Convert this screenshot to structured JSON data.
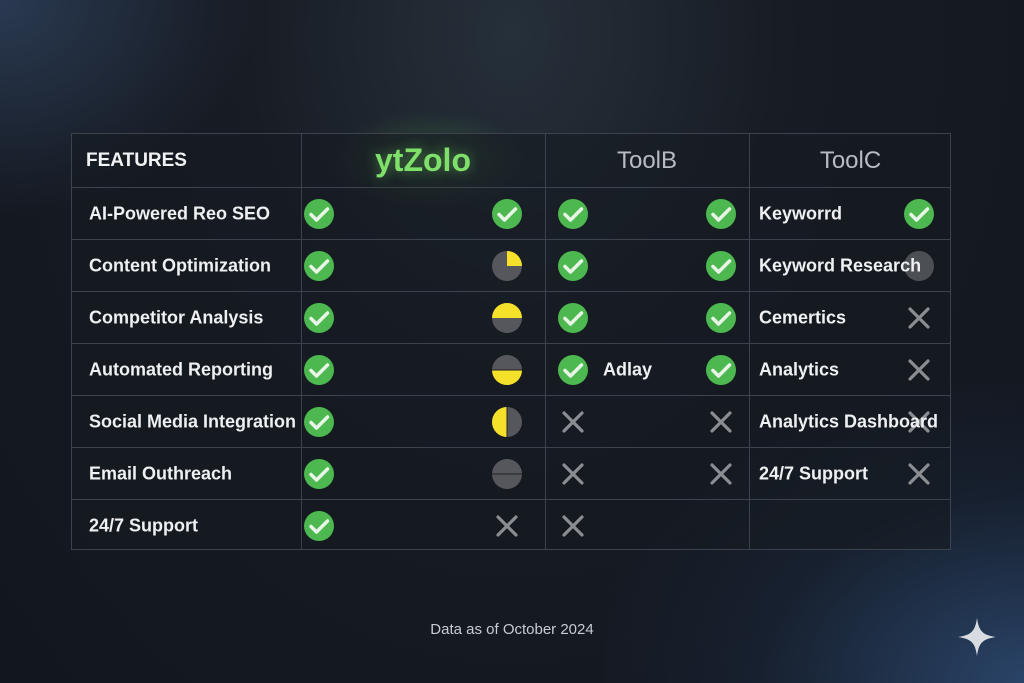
{
  "header": {
    "features": "FEATURES",
    "brand": "ytZolo",
    "toolb": "ToolB",
    "toolc": "ToolC"
  },
  "colors": {
    "brand": "#7ee06a",
    "check": "#4cb84f",
    "partial": "#f5e02a",
    "gray": "#55575c"
  },
  "rows": [
    {
      "feature": "AI-Powered Reo SEO",
      "yt": [
        "check",
        "check"
      ],
      "tb": [
        "check",
        "check"
      ],
      "tb_label": "",
      "tc_label": "Keyworrd",
      "tc": "check"
    },
    {
      "feature": "Content Optimization",
      "yt": [
        "check",
        "quarter-top-right"
      ],
      "tb": [
        "check",
        "check"
      ],
      "tb_label": "",
      "tc_label": "Keyword Research",
      "tc": "gray-circle"
    },
    {
      "feature": "Competitor Analysis",
      "yt": [
        "check",
        "half-top"
      ],
      "tb": [
        "check",
        "check"
      ],
      "tb_label": "",
      "tc_label": "Cemertics",
      "tc": "cross"
    },
    {
      "feature": "Automated Reporting",
      "yt": [
        "check",
        "half-bottom"
      ],
      "tb": [
        "check",
        "check"
      ],
      "tb_label": "Adlay",
      "tc_label": "Analytics",
      "tc": "cross"
    },
    {
      "feature": "Social Media Integration",
      "yt": [
        "check",
        "half-left"
      ],
      "tb": [
        "cross",
        "cross"
      ],
      "tb_label": "",
      "tc_label": "Analytics Dashboard",
      "tc": "cross"
    },
    {
      "feature": "Email Outhreach",
      "yt": [
        "check",
        "empty"
      ],
      "tb": [
        "cross",
        "cross"
      ],
      "tb_label": "",
      "tc_label": "24/7 Support",
      "tc": "cross"
    },
    {
      "feature": "24/7 Support",
      "yt": [
        "check",
        "cross"
      ],
      "tb": [
        "cross",
        ""
      ],
      "tb_label": "",
      "tc_label": "",
      "tc": ""
    }
  ],
  "footer": "Data as of October 2024"
}
